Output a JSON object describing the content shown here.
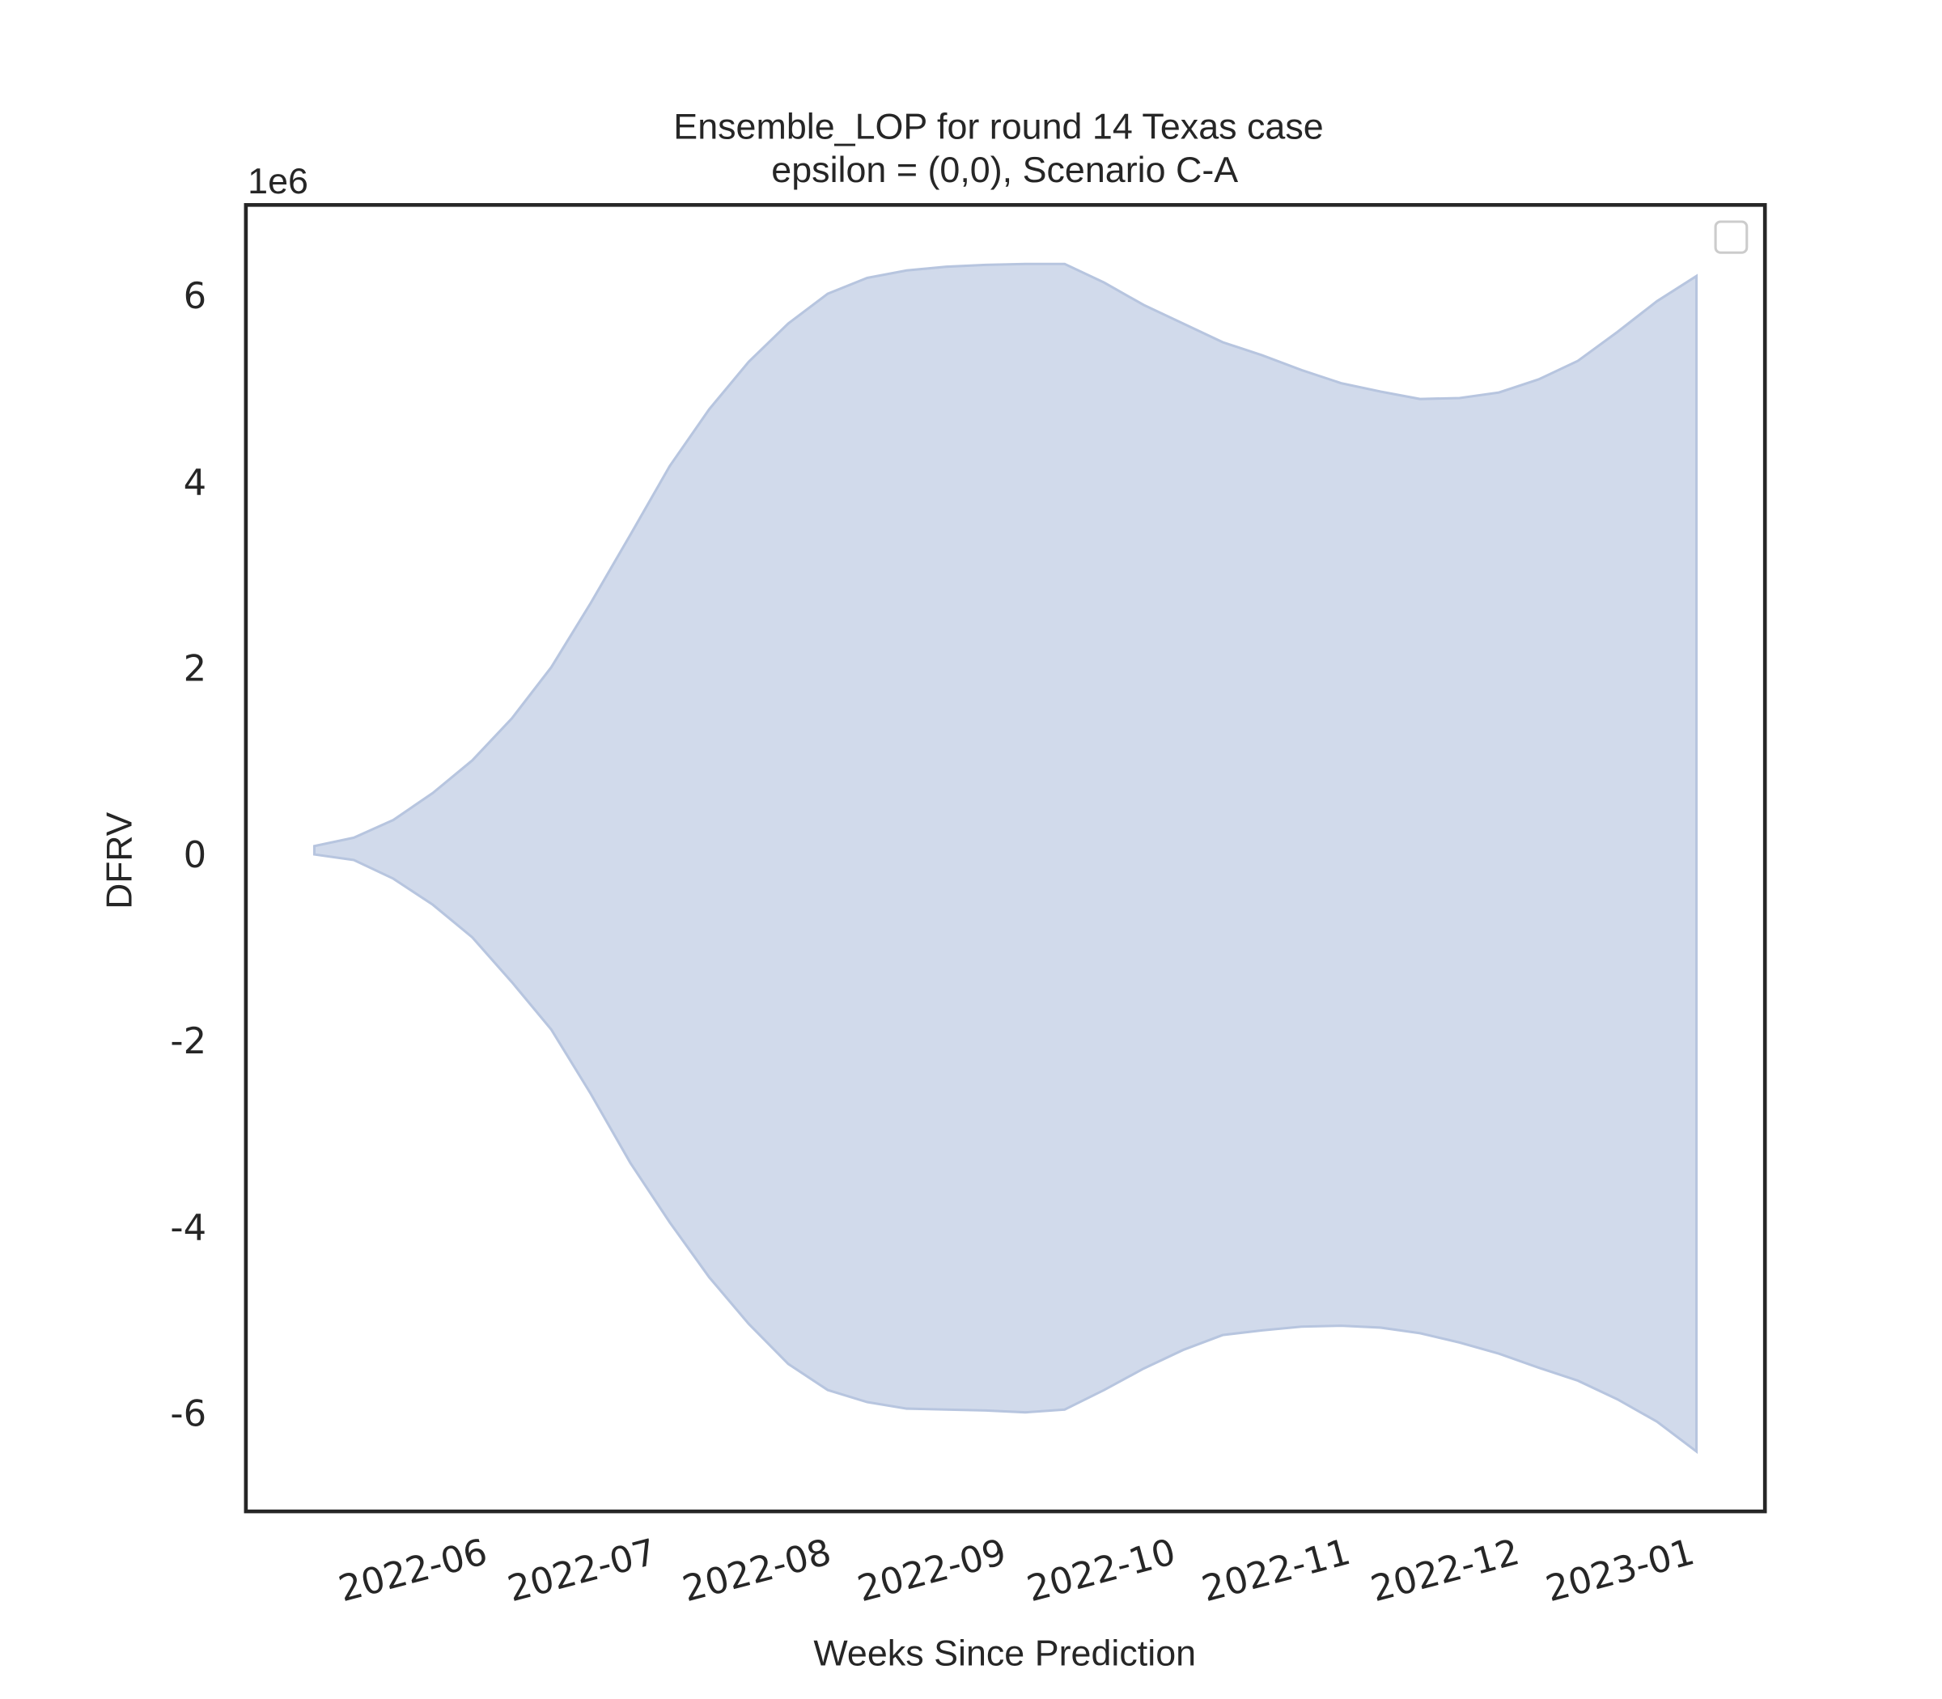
{
  "chart_data": {
    "type": "area",
    "title": "Ensemble_LOP for round 14 Texas case",
    "subtitle": "epsilon = (0,0), Scenario C-A",
    "xlabel": "Weeks Since Prediction",
    "ylabel": "DFRV",
    "y_offset_label": "1e6",
    "color": "#d1daeb",
    "edge_color": "#b7c5df",
    "x": [
      0,
      1,
      2,
      3,
      4,
      5,
      6,
      7,
      8,
      9,
      10,
      11,
      12,
      13,
      14,
      15,
      16,
      17,
      18,
      19,
      20,
      21,
      22,
      23,
      24,
      25,
      26,
      27,
      28,
      29,
      30,
      31,
      32,
      33,
      34,
      35
    ],
    "upper": [
      80000,
      170000,
      360000,
      650000,
      1000000,
      1450000,
      2000000,
      2690000,
      3420000,
      4160000,
      4770000,
      5280000,
      5690000,
      6010000,
      6180000,
      6260000,
      6300000,
      6320000,
      6330000,
      6330000,
      6130000,
      5890000,
      5690000,
      5490000,
      5350000,
      5190000,
      5050000,
      4960000,
      4880000,
      4890000,
      4950000,
      5090000,
      5290000,
      5600000,
      5930000,
      6200000
    ],
    "lower": [
      -10000,
      -70000,
      -270000,
      -550000,
      -900000,
      -1380000,
      -1890000,
      -2580000,
      -3320000,
      -3960000,
      -4550000,
      -5050000,
      -5480000,
      -5760000,
      -5890000,
      -5960000,
      -5970000,
      -5980000,
      -6000000,
      -5970000,
      -5760000,
      -5530000,
      -5330000,
      -5170000,
      -5120000,
      -5080000,
      -5070000,
      -5090000,
      -5150000,
      -5250000,
      -5370000,
      -5520000,
      -5660000,
      -5860000,
      -6100000,
      -6420000
    ],
    "xlim": [
      -1.75,
      36.75
    ],
    "xticks": [
      {
        "value": 4.43,
        "label": "2022-06"
      },
      {
        "value": 8.71,
        "label": "2022-07"
      },
      {
        "value": 13.14,
        "label": "2022-08"
      },
      {
        "value": 17.57,
        "label": "2022-09"
      },
      {
        "value": 21.86,
        "label": "2022-10"
      },
      {
        "value": 26.29,
        "label": "2022-11"
      },
      {
        "value": 30.57,
        "label": "2022-12"
      },
      {
        "value": 35,
        "label": "2023-01"
      }
    ],
    "ylim": [
      -7070000,
      6970000
    ],
    "yticks": [
      {
        "value": -6000000,
        "label": "-6"
      },
      {
        "value": -4000000,
        "label": "-4"
      },
      {
        "value": -2000000,
        "label": "-2"
      },
      {
        "value": 0,
        "label": "0"
      },
      {
        "value": 2000000,
        "label": "2"
      },
      {
        "value": 4000000,
        "label": "4"
      },
      {
        "value": 6000000,
        "label": "6"
      }
    ],
    "legend": "upper right"
  }
}
